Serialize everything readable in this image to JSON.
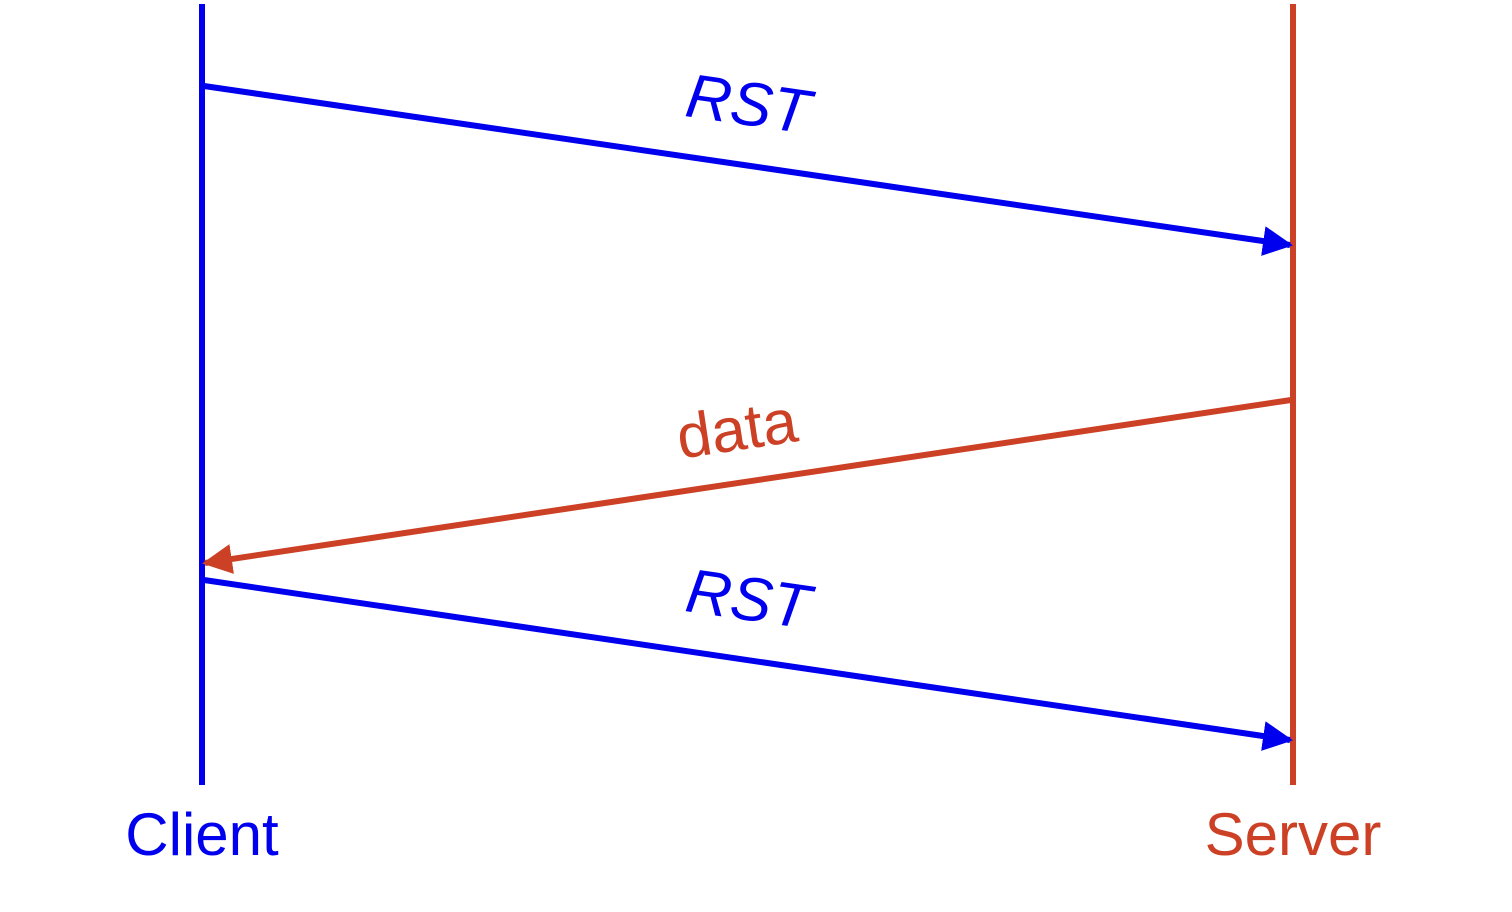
{
  "colors": {
    "client": "#0000ee",
    "server": "#cc4125",
    "background": "#ffffff"
  },
  "participants": {
    "client": {
      "label": "Client"
    },
    "server": {
      "label": "Server"
    }
  },
  "messages": [
    {
      "label": "RST",
      "from": "client",
      "to": "server"
    },
    {
      "label": "data",
      "from": "server",
      "to": "client"
    },
    {
      "label": "RST",
      "from": "client",
      "to": "server"
    }
  ]
}
